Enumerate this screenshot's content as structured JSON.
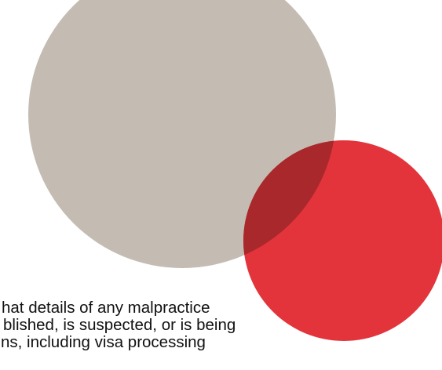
{
  "decoration": {
    "grey_circle_color": "#c4bcb3",
    "red_circle_color": "#e3343c",
    "overlap_color": "#a8282c"
  },
  "body_text": {
    "lines": [
      "hat details of any malpractice",
      "blished, is suspected, or is being",
      "ns, including visa processing"
    ]
  }
}
